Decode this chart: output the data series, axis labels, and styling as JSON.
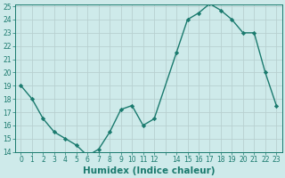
{
  "xlabel": "Humidex (Indice chaleur)",
  "ylabel": "",
  "x": [
    0,
    1,
    2,
    3,
    4,
    5,
    6,
    7,
    8,
    9,
    10,
    11,
    12,
    14,
    15,
    16,
    17,
    18,
    19,
    20,
    21,
    22,
    23
  ],
  "y": [
    19.0,
    18.0,
    16.5,
    15.5,
    15.0,
    14.5,
    13.7,
    14.2,
    15.5,
    17.2,
    17.5,
    16.0,
    16.5,
    21.5,
    24.0,
    24.5,
    25.2,
    24.7,
    24.0,
    23.0,
    23.0,
    20.0,
    17.5
  ],
  "line_color": "#1a7a6e",
  "marker": "D",
  "marker_size": 2.2,
  "bg_color": "#ceeaea",
  "grid_color": "#b8d0d0",
  "ylim": [
    14,
    25
  ],
  "yticks": [
    14,
    15,
    16,
    17,
    18,
    19,
    20,
    21,
    22,
    23,
    24,
    25
  ],
  "xtick_labels": [
    "0",
    "1",
    "2",
    "3",
    "4",
    "5",
    "6",
    "7",
    "8",
    "9",
    "101112",
    "",
    "",
    "1415161718192021",
    "",
    "",
    "",
    "",
    "",
    "",
    "",
    "2223"
  ],
  "tick_label_fontsize": 5.5,
  "xlabel_fontsize": 7.5,
  "line_width": 1.0
}
